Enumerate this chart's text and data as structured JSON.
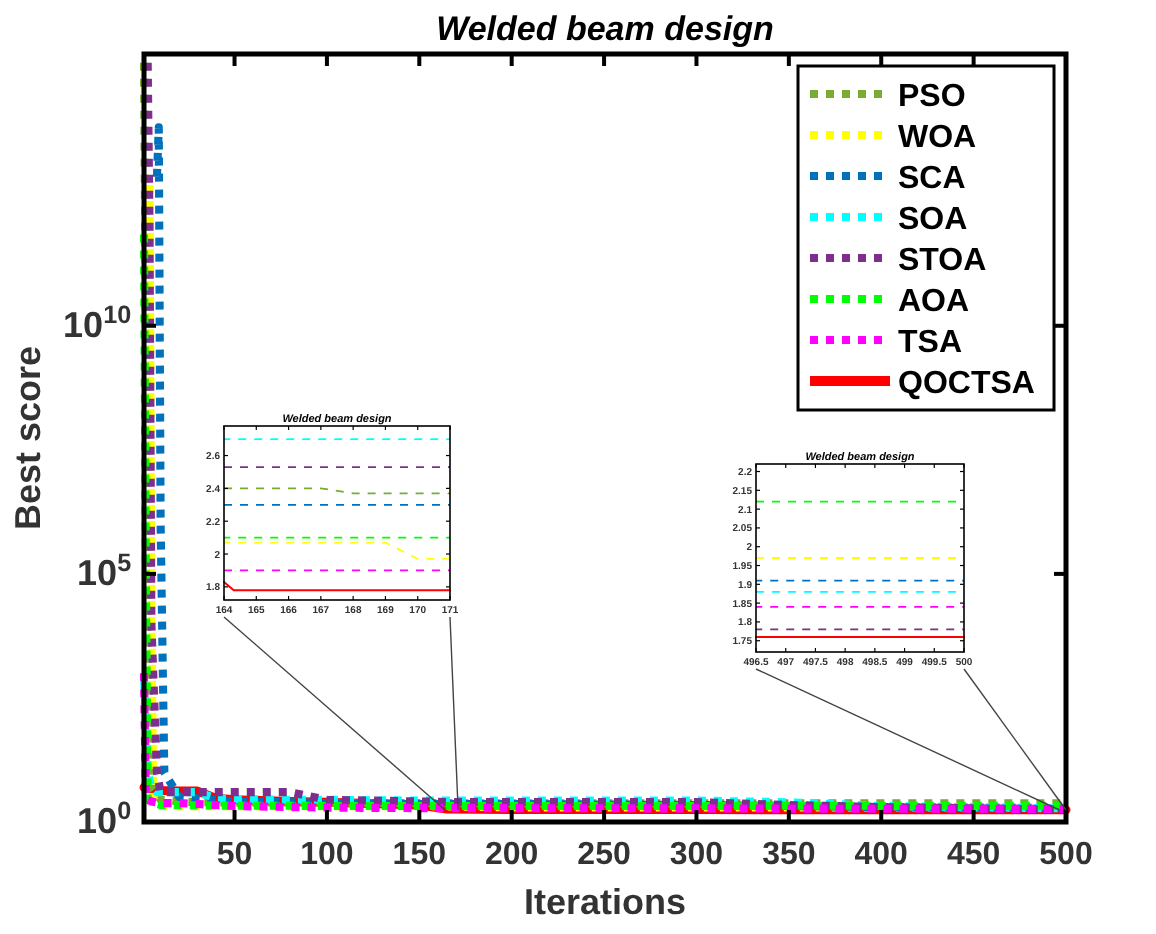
{
  "chart_data": [
    {
      "type": "line",
      "title": "Welded beam design",
      "xlabel": "Iterations",
      "ylabel": "Best score",
      "log": "y",
      "xlim": [
        1,
        500
      ],
      "xticks": [
        50,
        100,
        150,
        200,
        250,
        300,
        350,
        400,
        450,
        500
      ],
      "ylim": [
        1,
        3000000000000000.0
      ],
      "yticks": [
        {
          "value": 1,
          "label": "10$^{0}$"
        },
        {
          "value": 100000,
          "label": "10$^{5}$"
        },
        {
          "value": 10000000000,
          "label": "10$^{10}$"
        }
      ],
      "grid": false,
      "legend": "top right",
      "series": [
        {
          "name": "PSO",
          "color": "#77ac30",
          "line_style": "dotted",
          "x": [
            1,
            2,
            3,
            5,
            10,
            20,
            30,
            40,
            50,
            80,
            100,
            150,
            165,
            200,
            300,
            350,
            400,
            500
          ],
          "values": [
            2000000000000000.0,
            10000000000.0,
            1000,
            5,
            2.8,
            2.6,
            2.5,
            2.5,
            2.45,
            2.45,
            2.42,
            2.4,
            2.4,
            2.37,
            2.37,
            2.37,
            2.37,
            2.37
          ]
        },
        {
          "name": "WOA",
          "color": "#ffff00",
          "line_style": "dotted",
          "x": [
            4,
            5,
            6,
            8,
            10,
            20,
            30,
            40,
            50,
            80,
            100,
            150,
            165,
            200,
            300,
            350,
            400,
            500
          ],
          "values": [
            10000000000000.0,
            10000,
            3,
            2.2,
            2.1,
            2.08,
            2.08,
            2.07,
            2.07,
            2.07,
            2.07,
            2.07,
            2.07,
            1.97,
            1.97,
            1.97,
            1.97,
            1.97
          ]
        },
        {
          "name": "SCA",
          "color": "#0072bd",
          "line_style": "dotted",
          "x": [
            8,
            9,
            10,
            12,
            20,
            30,
            40,
            50,
            80,
            100,
            150,
            165,
            200,
            300,
            350,
            400,
            500
          ],
          "values": [
            10000000000000.0,
            100000000000000.0,
            1000000,
            10,
            3.2,
            3,
            2.8,
            2.6,
            2.5,
            2.4,
            2.3,
            2.3,
            2.3,
            2.2,
            2.1,
            2,
            1.91
          ]
        },
        {
          "name": "SOA",
          "color": "#00ffff",
          "line_style": "dotted",
          "x": [
            1,
            3,
            5,
            8,
            10,
            20,
            30,
            40,
            50,
            80,
            100,
            150,
            165,
            200,
            300,
            350,
            400,
            500
          ],
          "values": [
            1000,
            10,
            5,
            4,
            4,
            4,
            4,
            3,
            2.9,
            2.8,
            2.8,
            2.7,
            2.7,
            2.7,
            2.7,
            2.5,
            2.1,
            1.88
          ]
        },
        {
          "name": "STOA",
          "color": "#7e2f8e",
          "line_style": "dotted",
          "x": [
            3,
            4,
            5,
            8,
            10,
            20,
            30,
            40,
            50,
            80,
            100,
            150,
            165,
            200,
            300,
            350,
            400,
            500
          ],
          "values": [
            2000000000000000.0,
            1000000000000.0,
            10000,
            10,
            4,
            4,
            4,
            4,
            4,
            4,
            2.8,
            2.6,
            2.53,
            2.53,
            2.53,
            2.2,
            2,
            1.78
          ]
        },
        {
          "name": "AOA",
          "color": "#00ff00",
          "line_style": "dotted",
          "x": [
            1,
            2,
            3,
            5,
            10,
            20,
            30,
            40,
            50,
            80,
            100,
            150,
            165,
            200,
            300,
            350,
            400,
            500
          ],
          "values": [
            1000000000000.0,
            100000,
            3,
            2.5,
            2.2,
            2.2,
            2.15,
            2.15,
            2.12,
            2.12,
            2.1,
            2.1,
            2.1,
            2.1,
            2.1,
            2.12,
            2.12,
            2.12
          ]
        },
        {
          "name": "TSA",
          "color": "#ff00ff",
          "line_style": "dotted",
          "x": [
            1,
            2,
            3,
            5,
            10,
            20,
            30,
            40,
            50,
            80,
            100,
            150,
            165,
            200,
            300,
            350,
            400,
            500
          ],
          "values": [
            1000,
            3,
            2.8,
            2.6,
            2.4,
            2.4,
            2.3,
            2.2,
            2.1,
            2,
            1.95,
            1.9,
            1.9,
            1.9,
            1.88,
            1.86,
            1.85,
            1.84
          ]
        },
        {
          "name": "QOCTSA",
          "color": "#ff0000",
          "line_style": "solid",
          "x": [
            1,
            2,
            3,
            5,
            10,
            20,
            30,
            40,
            50,
            80,
            100,
            150,
            165,
            200,
            300,
            350,
            400,
            500
          ],
          "values": [
            5,
            5,
            4.8,
            4.6,
            4.3,
            4.2,
            4.2,
            3,
            2.8,
            2.6,
            2.5,
            2.2,
            1.83,
            1.78,
            1.78,
            1.77,
            1.77,
            1.76
          ]
        }
      ]
    },
    {
      "type": "line",
      "title": "Welded beam design",
      "xlim": [
        164,
        171
      ],
      "xticks": [
        164,
        165,
        166,
        167,
        168,
        169,
        170,
        171
      ],
      "ylim": [
        1.72,
        2.78
      ],
      "yticks": [
        1.8,
        2,
        2.2,
        2.4,
        2.6
      ],
      "x": [
        164,
        164.3,
        167,
        168,
        169,
        170,
        171
      ],
      "series": [
        {
          "color": "#77ac30",
          "line_style": "dotted",
          "values": [
            2.4,
            2.4,
            2.4,
            2.37,
            2.37,
            2.37,
            2.37
          ]
        },
        {
          "color": "#ffff00",
          "line_style": "dotted",
          "values": [
            2.07,
            2.07,
            2.07,
            2.07,
            2.07,
            1.97,
            1.97
          ]
        },
        {
          "color": "#0072bd",
          "line_style": "dotted",
          "values": [
            2.3,
            2.3,
            2.3,
            2.3,
            2.3,
            2.3,
            2.3
          ]
        },
        {
          "color": "#00ffff",
          "line_style": "dotted",
          "values": [
            2.7,
            2.7,
            2.7,
            2.7,
            2.7,
            2.7,
            2.7
          ]
        },
        {
          "color": "#7e2f8e",
          "line_style": "dotted",
          "values": [
            2.53,
            2.53,
            2.53,
            2.53,
            2.53,
            2.53,
            2.53
          ]
        },
        {
          "color": "#00ff00",
          "line_style": "dotted",
          "values": [
            2.1,
            2.1,
            2.1,
            2.1,
            2.1,
            2.1,
            2.1
          ]
        },
        {
          "color": "#ff00ff",
          "line_style": "dotted",
          "values": [
            1.9,
            1.9,
            1.9,
            1.9,
            1.9,
            1.9,
            1.9
          ]
        },
        {
          "color": "#ff0000",
          "line_style": "solid",
          "values": [
            1.83,
            1.78,
            1.78,
            1.78,
            1.78,
            1.78,
            1.78
          ]
        }
      ]
    },
    {
      "type": "line",
      "title": "Welded beam design",
      "xlim": [
        496.5,
        500
      ],
      "xticks": [
        496.5,
        497,
        497.5,
        498,
        498.5,
        499,
        499.5,
        500
      ],
      "ylim": [
        1.72,
        2.22
      ],
      "yticks": [
        1.75,
        1.8,
        1.85,
        1.9,
        1.95,
        2,
        2.05,
        2.1,
        2.15,
        2.2
      ],
      "x": [
        496.5,
        500
      ],
      "series": [
        {
          "color": "#ffff00",
          "line_style": "dotted",
          "values": [
            1.97,
            1.97
          ]
        },
        {
          "color": "#0072bd",
          "line_style": "dotted",
          "values": [
            1.91,
            1.91
          ]
        },
        {
          "color": "#00ffff",
          "line_style": "dotted",
          "values": [
            1.88,
            1.88
          ]
        },
        {
          "color": "#7e2f8e",
          "line_style": "dotted",
          "values": [
            1.78,
            1.78
          ]
        },
        {
          "color": "#00ff00",
          "line_style": "dotted",
          "values": [
            2.12,
            2.12
          ]
        },
        {
          "color": "#ff00ff",
          "line_style": "dotted",
          "values": [
            1.84,
            1.84
          ]
        },
        {
          "color": "#ff0000",
          "line_style": "solid",
          "values": [
            1.76,
            1.76
          ]
        }
      ]
    }
  ]
}
